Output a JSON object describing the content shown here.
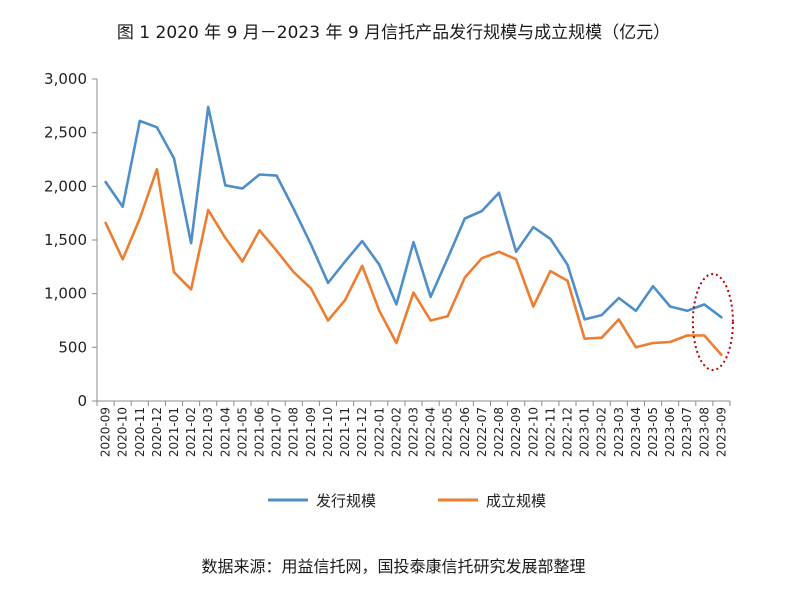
{
  "chart_data": {
    "type": "line",
    "title": "图 1 2020 年 9 月－2023 年 9 月信托产品发行规模与成立规模（亿元）",
    "source": "数据来源：用益信托网，国投泰康信托研究发展部整理",
    "categories": [
      "2020-09",
      "2020-10",
      "2020-11",
      "2020-12",
      "2021-01",
      "2021-02",
      "2021-03",
      "2021-04",
      "2021-05",
      "2021-06",
      "2021-07",
      "2021-08",
      "2021-09",
      "2021-10",
      "2021-11",
      "2021-12",
      "2022-01",
      "2022-02",
      "2022-03",
      "2022-04",
      "2022-05",
      "2022-06",
      "2022-07",
      "2022-08",
      "2022-09",
      "2022-10",
      "2022-11",
      "2022-12",
      "2023-01",
      "2023-02",
      "2023-03",
      "2023-04",
      "2023-05",
      "2023-06",
      "2023-07",
      "2023-08",
      "2023-09"
    ],
    "series": [
      {
        "name": "发行规模",
        "color": "#4f8fc9",
        "values": [
          2040,
          1810,
          2610,
          2550,
          2260,
          1470,
          2740,
          2010,
          1980,
          2110,
          2100,
          1790,
          1460,
          1100,
          1300,
          1490,
          1270,
          900,
          1480,
          970,
          1330,
          1700,
          1770,
          1940,
          1390,
          1620,
          1510,
          1270,
          760,
          800,
          960,
          840,
          1070,
          880,
          840,
          900,
          780
        ]
      },
      {
        "name": "成立规模",
        "color": "#ed7d31",
        "values": [
          1660,
          1320,
          1700,
          2160,
          1200,
          1040,
          1780,
          1520,
          1300,
          1590,
          1400,
          1200,
          1050,
          750,
          940,
          1260,
          840,
          540,
          1010,
          750,
          790,
          1150,
          1330,
          1390,
          1320,
          880,
          1210,
          1120,
          580,
          590,
          760,
          500,
          540,
          550,
          610,
          610,
          430
        ]
      }
    ],
    "y_ticks": [
      "0",
      "500",
      "1,000",
      "1,500",
      "2,000",
      "2,500",
      "3,000"
    ],
    "ylim": [
      0,
      3000
    ],
    "grid": false,
    "legend_position": "bottom",
    "highlight": {
      "type": "dotted-ellipse",
      "color": "#c00000",
      "categories": [
        "2023-08",
        "2023-09"
      ]
    }
  }
}
